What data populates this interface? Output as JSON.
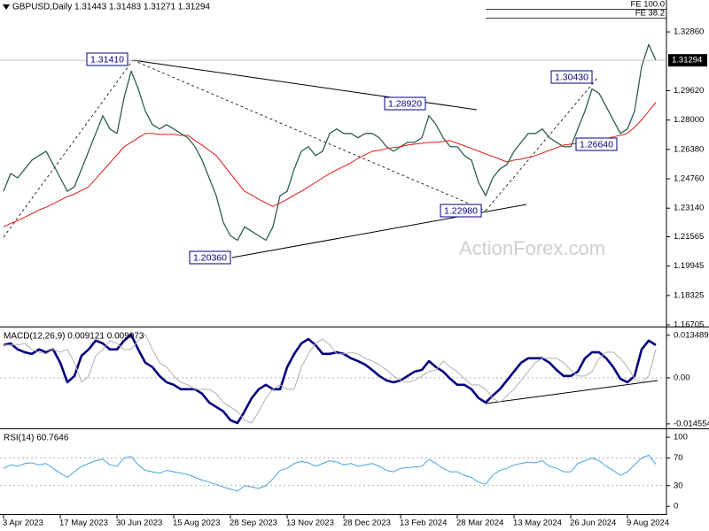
{
  "chart_data": [
    {
      "type": "line",
      "title": "GBPUSD,Daily  1.31443 1.31483 1.31271 1.31294",
      "categories": [
        "3 Apr 2023",
        null,
        null,
        null,
        null,
        null,
        null,
        null,
        "17 May 2023",
        null,
        null,
        null,
        null,
        null,
        null,
        null,
        "30 Jun 2023",
        null,
        null,
        null,
        null,
        null,
        null,
        null,
        "15 Aug 2023",
        null,
        null,
        null,
        null,
        null,
        null,
        null,
        "28 Sep 2023",
        null,
        null,
        null,
        null,
        null,
        null,
        null,
        "13 Nov 2023",
        null,
        null,
        null,
        null,
        null,
        null,
        null,
        "28 Dec 2023",
        null,
        null,
        null,
        null,
        null,
        null,
        null,
        "13 Feb 2024",
        null,
        null,
        null,
        null,
        null,
        null,
        null,
        "28 Mar 2024",
        null,
        null,
        null,
        null,
        null,
        null,
        null,
        "13 May 2024",
        null,
        null,
        null,
        null,
        null,
        null,
        null,
        "26 Jun 2024",
        null,
        null,
        null,
        null,
        null,
        null,
        null,
        "9 Aug 2024",
        null,
        null,
        null,
        null
      ],
      "series": [
        {
          "color": "#2e5e50",
          "width": 1.3,
          "values": [
            1.2407,
            1.2505,
            1.2481,
            1.253,
            1.2579,
            1.2604,
            1.2628,
            1.2555,
            1.2481,
            1.2407,
            1.2432,
            1.253,
            1.2628,
            1.2726,
            1.2824,
            1.2751,
            1.2726,
            1.2923,
            1.307,
            1.2972,
            1.2849,
            1.2775,
            1.2751,
            1.2775,
            1.2751,
            1.2726,
            1.2702,
            1.2653,
            1.2579,
            1.2481,
            1.2383,
            1.2235,
            1.2162,
            1.2137,
            1.2211,
            1.2186,
            1.2162,
            1.2137,
            1.2211,
            1.2383,
            1.2407,
            1.253,
            1.2628,
            1.2653,
            1.2604,
            1.2628,
            1.2726,
            1.2751,
            1.2726,
            1.2726,
            1.2702,
            1.2726,
            1.2726,
            1.2702,
            1.2653,
            1.2628,
            1.2653,
            1.2677,
            1.2677,
            1.2702,
            1.2824,
            1.2775,
            1.2702,
            1.2653,
            1.2653,
            1.2604,
            1.2579,
            1.2456,
            1.2383,
            1.2481,
            1.253,
            1.2555,
            1.2628,
            1.2677,
            1.2726,
            1.2726,
            1.2751,
            1.2702,
            1.2677,
            1.2653,
            1.2653,
            1.2751,
            1.2849,
            1.2972,
            1.2947,
            1.2874,
            1.28,
            1.2726,
            1.2751,
            1.2849,
            1.3095,
            1.3217,
            1.3129
          ]
        },
        {
          "color": "#e01818",
          "width": 1,
          "values": [
            1.2211,
            1.223,
            1.2245,
            1.2265,
            1.2284,
            1.2304,
            1.2319,
            1.2338,
            1.2358,
            1.2378,
            1.2392,
            1.2412,
            1.2432,
            1.2476,
            1.252,
            1.2564,
            1.2608,
            1.2653,
            1.2677,
            1.2702,
            1.2726,
            1.2726,
            1.2721,
            1.2721,
            1.2721,
            1.2716,
            1.2716,
            1.2687,
            1.2662,
            1.2633,
            1.2604,
            1.2554,
            1.2505,
            1.2456,
            1.2407,
            1.2387,
            1.2363,
            1.2343,
            1.2324,
            1.2343,
            1.2363,
            1.2387,
            1.2407,
            1.2432,
            1.2456,
            1.2481,
            1.2505,
            1.2525,
            1.2545,
            1.2564,
            1.2589,
            1.2608,
            1.2628,
            1.2633,
            1.2643,
            1.2648,
            1.2653,
            1.2662,
            1.2667,
            1.2672,
            1.2677,
            1.2677,
            1.2682,
            1.2687,
            1.2672,
            1.2658,
            1.2643,
            1.2628,
            1.2613,
            1.2599,
            1.2584,
            1.2569,
            1.2579,
            1.2584,
            1.2594,
            1.2604,
            1.2618,
            1.2633,
            1.2648,
            1.2662,
            1.2667,
            1.2672,
            1.2677,
            1.2682,
            1.2687,
            1.2697,
            1.2707,
            1.2716,
            1.2726,
            1.2761,
            1.28,
            1.2849,
            1.2898
          ]
        }
      ],
      "ylim": [
        1.1666,
        1.3462
      ],
      "yticks": [
        {
          "value": 1.3286,
          "label": "1.32860"
        },
        {
          "value": 1.2962,
          "label": "1.29620"
        },
        {
          "value": 1.28,
          "label": "1.28000"
        },
        {
          "value": 1.2638,
          "label": "1.26380"
        },
        {
          "value": 1.2476,
          "label": "1.24760"
        },
        {
          "value": 1.2314,
          "label": "1.23140"
        },
        1.21565,
        1.19945,
        1.18325,
        1.16705
      ],
      "last_price": 1.31294,
      "annotations": [
        "1.31410",
        "1.28920",
        "1.30430",
        "1.26640",
        "1.22980",
        "1.20360",
        "FE 100.0",
        "FE 38.2"
      ],
      "watermark": "ActionForex.com"
    },
    {
      "type": "line",
      "title": "MACD(12,26,9) 0.009121 0.009073",
      "series": [
        {
          "color": "#000080",
          "width": 2.6,
          "values": [
            0.0104,
            0.0109,
            0.009,
            0.0081,
            0.0076,
            0.009,
            0.0081,
            0.009,
            0.0048,
            -0.0014,
            0.0006,
            0.007,
            0.009,
            0.0118,
            0.0109,
            0.009,
            0.009,
            0.0118,
            0.0137,
            0.009,
            0.0048,
            0.0034,
            0.0006,
            -0.0014,
            -0.0022,
            -0.0036,
            -0.0036,
            -0.0036,
            -0.005,
            -0.0078,
            -0.0092,
            -0.0106,
            -0.0134,
            -0.0143,
            -0.0106,
            -0.0064,
            -0.0036,
            -0.0022,
            -0.0036,
            -0.0036,
            0.0034,
            0.0076,
            0.0109,
            0.0123,
            0.0104,
            0.0076,
            0.0076,
            0.0081,
            0.0076,
            0.0062,
            0.0053,
            0.0042,
            0.0025,
            0.0006,
            -0.0008,
            -0.0014,
            -0.0008,
            0.0006,
            0.002,
            0.0025,
            0.0053,
            0.0034,
            0.002,
            -0.0003,
            -0.0022,
            -0.0022,
            -0.0036,
            -0.0064,
            -0.0078,
            -0.0056,
            -0.0036,
            -0.0008,
            0.002,
            0.0048,
            0.0062,
            0.0062,
            0.0062,
            0.0048,
            0.0025,
            0.0006,
            0.0006,
            0.002,
            0.0062,
            0.0081,
            0.0081,
            0.0062,
            0.0034,
            -0.0003,
            -0.0014,
            0.0006,
            0.009,
            0.0118,
            0.0104
          ]
        },
        {
          "color": "#b0b0b0",
          "width": 1,
          "values": [
            0.0104,
            0.0104,
            0.0104,
            0.0109,
            0.009,
            0.0081,
            0.0076,
            0.009,
            0.0081,
            0.009,
            0.0048,
            -0.0014,
            0.0006,
            0.007,
            0.009,
            0.0118,
            0.0109,
            0.009,
            0.009,
            0.0118,
            0.0137,
            0.009,
            0.0048,
            0.0034,
            0.0006,
            -0.0014,
            -0.0022,
            -0.0036,
            -0.0036,
            -0.0036,
            -0.005,
            -0.0078,
            -0.0092,
            -0.0106,
            -0.0134,
            -0.0143,
            -0.0106,
            -0.0064,
            -0.0036,
            -0.0022,
            -0.0036,
            -0.0036,
            0.0034,
            0.0076,
            0.0109,
            0.0123,
            0.0104,
            0.0076,
            0.0076,
            0.0081,
            0.0076,
            0.0062,
            0.0053,
            0.0042,
            0.0025,
            0.0006,
            -0.0008,
            -0.0014,
            -0.0008,
            0.0006,
            0.002,
            0.0025,
            0.0053,
            0.0034,
            0.002,
            -0.0003,
            -0.0022,
            -0.0022,
            -0.0036,
            -0.0064,
            -0.0078,
            -0.0056,
            -0.0036,
            -0.0008,
            0.002,
            0.0048,
            0.0062,
            0.0062,
            0.0062,
            0.0048,
            0.0025,
            0.0006,
            0.0006,
            0.002,
            0.0062,
            0.0081,
            0.0081,
            0.0062,
            0.0034,
            -0.0003,
            -0.0014,
            0.0006,
            0.009
          ]
        }
      ],
      "ylim": [
        -0.0157,
        0.0154
      ],
      "yticks": [
        0.013489,
        {
          "value": 0,
          "label": "0.00"
        },
        -0.014554
      ],
      "levels": [
        0
      ]
    },
    {
      "type": "line",
      "title": "RSI(14) 60.7646",
      "series": [
        {
          "color": "#4aa3df",
          "width": 1,
          "values": [
            55,
            60,
            58,
            62,
            63,
            60,
            62,
            55,
            48,
            42,
            50,
            58,
            62,
            66,
            68,
            60,
            58,
            70,
            72,
            60,
            52,
            50,
            48,
            52,
            50,
            48,
            46,
            42,
            38,
            35,
            32,
            28,
            25,
            22,
            30,
            28,
            26,
            30,
            40,
            52,
            55,
            62,
            65,
            63,
            58,
            62,
            66,
            64,
            60,
            62,
            58,
            60,
            62,
            58,
            52,
            50,
            55,
            56,
            57,
            58,
            68,
            62,
            55,
            50,
            50,
            45,
            42,
            35,
            32,
            45,
            52,
            55,
            60,
            62,
            64,
            63,
            66,
            58,
            55,
            50,
            50,
            62,
            66,
            70,
            66,
            58,
            52,
            45,
            50,
            60,
            70,
            74,
            61
          ]
        }
      ],
      "ylim": [
        -10,
        109
      ],
      "yticks": [
        100,
        70,
        30,
        0
      ],
      "levels": [
        30,
        70
      ]
    }
  ]
}
